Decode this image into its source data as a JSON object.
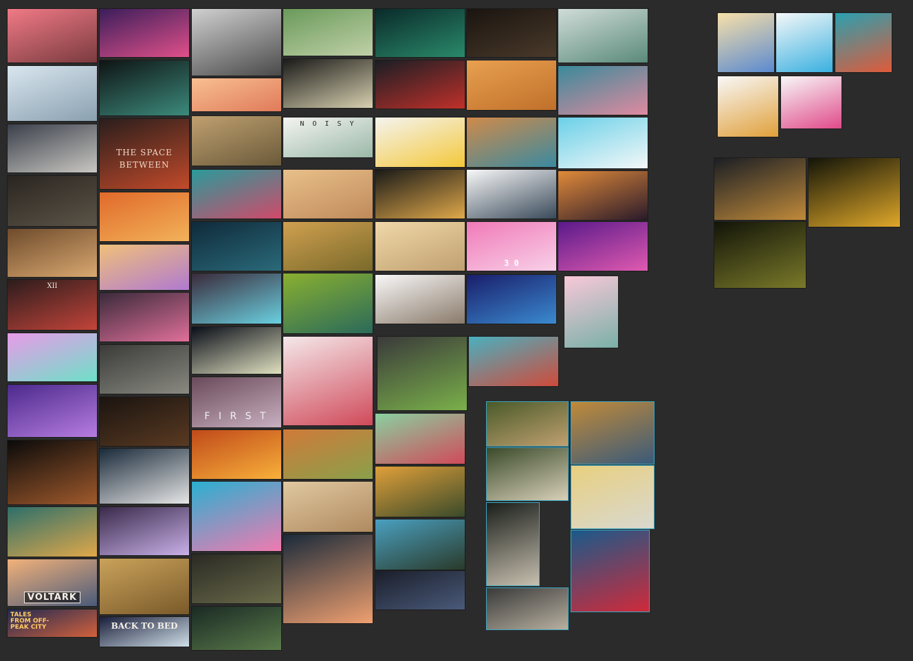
{
  "board": {
    "tiles": [
      {
        "name": "tile-pink-sunset-ruins",
        "c1": "#f07a86",
        "c2": "#7a3b3f"
      },
      {
        "name": "tile-white-iso-room",
        "c1": "#d9e6ef",
        "c2": "#8aa0b0"
      },
      {
        "name": "tile-monochrome-toy-scene",
        "c1": "#3a3f4a",
        "c2": "#c9c7c2"
      },
      {
        "name": "tile-dark-kitchen",
        "c1": "#2a2520",
        "c2": "#5c5448"
      },
      {
        "name": "tile-window-room",
        "c1": "#6e4b2c",
        "c2": "#d9a870"
      },
      {
        "name": "tile-red-moon-bar",
        "c1": "#2b1c1c",
        "c2": "#c3443a",
        "label": "XII"
      },
      {
        "name": "tile-neon-pastel-house",
        "c1": "#e89be8",
        "c2": "#6ee0c8"
      },
      {
        "name": "tile-purple-tree-field",
        "c1": "#4b2a8c",
        "c2": "#b77ce0"
      },
      {
        "name": "tile-glowing-capsule",
        "c1": "#0a0a0a",
        "c2": "#a05a2c"
      },
      {
        "name": "tile-teal-chess-tower",
        "c1": "#2d6f6a",
        "c2": "#e0a84a"
      },
      {
        "name": "tile-voltark-sunset",
        "c1": "#f3b27a",
        "c2": "#4a5a7a",
        "label": "VOLTARK"
      },
      {
        "name": "tile-tales-off-peak-city",
        "c1": "#1f2a52",
        "c2": "#d4613c",
        "label": "TALES FROM OFF-PEAK CITY"
      },
      {
        "name": "tile-purple-pink-forest",
        "c1": "#3b1e5a",
        "c2": "#e0508a"
      },
      {
        "name": "tile-dark-teal-room",
        "c1": "#0f1414",
        "c2": "#3c8a7c"
      },
      {
        "name": "tile-the-space-between",
        "c1": "#2a1e1c",
        "c2": "#c24a2a",
        "label": "THE SPACE BETWEEN"
      },
      {
        "name": "tile-orange-canyon",
        "c1": "#e06a2a",
        "c2": "#f2b25a"
      },
      {
        "name": "tile-pastel-desert-tower",
        "c1": "#f0c07a",
        "c2": "#b07ad0"
      },
      {
        "name": "tile-pink-cubes-night",
        "c1": "#3a2a3a",
        "c2": "#e0709a"
      },
      {
        "name": "tile-foggy-forest",
        "c1": "#3a3a38",
        "c2": "#8a8a82"
      },
      {
        "name": "tile-dark-corridor",
        "c1": "#1a1410",
        "c2": "#5a3a22"
      },
      {
        "name": "tile-paper-cutout-map",
        "c1": "#1a2a3a",
        "c2": "#e6e6e6"
      },
      {
        "name": "tile-purple-stairs",
        "c1": "#3a2a4a",
        "c2": "#c8b0e8"
      },
      {
        "name": "tile-golden-mountain-pilgrim",
        "c1": "#c9a25a",
        "c2": "#7a5a2a"
      },
      {
        "name": "tile-back-to-bed-eye",
        "c1": "#1a1e3a",
        "c2": "#d0e0e8",
        "label": "BACK TO BED"
      },
      {
        "name": "tile-ink-creatures",
        "c1": "#d0d0d0",
        "c2": "#4a4a4a"
      },
      {
        "name": "tile-orange-haze-forest",
        "c1": "#f8c090",
        "c2": "#e07a5a"
      },
      {
        "name": "tile-desert-steampunk-city",
        "c1": "#c0a070",
        "c2": "#6a5a3a"
      },
      {
        "name": "tile-crystal-sea",
        "c1": "#2a9a9a",
        "c2": "#d04a6a"
      },
      {
        "name": "tile-dark-blue-bridge",
        "c1": "#0f2a3a",
        "c2": "#2a6a7a"
      },
      {
        "name": "tile-waterfall-valley",
        "c1": "#3a2a3a",
        "c2": "#6ad0e0"
      },
      {
        "name": "tile-city-lights-night",
        "c1": "#0a0e18",
        "c2": "#e0e0c0"
      },
      {
        "name": "tile-first-title",
        "c1": "#6a4a5a",
        "c2": "#c8b0c0",
        "label": "F I R S T"
      },
      {
        "name": "tile-golden-temple",
        "c1": "#c04a1a",
        "c2": "#f8b03a"
      },
      {
        "name": "tile-pixel-pink-robot",
        "c1": "#2ab0d0",
        "c2": "#f07ab0"
      },
      {
        "name": "tile-jungle-ruins-dark",
        "c1": "#2a2a24",
        "c2": "#6a6a4a"
      },
      {
        "name": "tile-dark-green-underwater",
        "c1": "#1a2a24",
        "c2": "#5a7a4a"
      },
      {
        "name": "tile-green-hill-figure",
        "c1": "#6a9a5a",
        "c2": "#c0d0a8"
      },
      {
        "name": "tile-light-shaft-cave",
        "c1": "#1a1a18",
        "c2": "#d8d0b0"
      },
      {
        "name": "tile-noisy-paper-title",
        "c1": "#f4f4f0",
        "c2": "#9ab8a8",
        "label": "N O I S Y"
      },
      {
        "name": "tile-desert-road",
        "c1": "#e8c08a",
        "c2": "#c08a5a"
      },
      {
        "name": "tile-autumn-field",
        "c1": "#d0a050",
        "c2": "#7a6a2a"
      },
      {
        "name": "tile-green-swamp-map",
        "c1": "#8ab030",
        "c2": "#2a6a5a"
      },
      {
        "name": "tile-pink-street",
        "c1": "#f4e8ea",
        "c2": "#d04a5a"
      },
      {
        "name": "tile-autumn-village",
        "c1": "#d07a3a",
        "c2": "#8aa04a"
      },
      {
        "name": "tile-desert-dune-sphere",
        "c1": "#e0c8a0",
        "c2": "#b08a60"
      },
      {
        "name": "tile-power-lines-clouds",
        "c1": "#1a2a3a",
        "c2": "#f0a070"
      },
      {
        "name": "tile-dark-teal-waves",
        "c1": "#0a2a2a",
        "c2": "#2a8a6a"
      },
      {
        "name": "tile-red-roots-room",
        "c1": "#1a1e24",
        "c2": "#c0302a"
      },
      {
        "name": "tile-yellow-creature",
        "c1": "#f4f4f0",
        "c2": "#f4c83a"
      },
      {
        "name": "tile-impossible-architecture",
        "c1": "#1a1a18",
        "c2": "#e0a84a"
      },
      {
        "name": "tile-desert-figures",
        "c1": "#f0d8a8",
        "c2": "#c0a070"
      },
      {
        "name": "tile-rocky-island-white",
        "c1": "#f8f8f8",
        "c2": "#8a7a6a"
      },
      {
        "name": "tile-iso-grass-island",
        "c1": "#3a3a3a",
        "c2": "#7ab04a"
      },
      {
        "name": "tile-garden-pond",
        "c1": "#8ad0a0",
        "c2": "#d04a5a"
      },
      {
        "name": "tile-orange-forest-sunset",
        "c1": "#e0a03a",
        "c2": "#3a4a2a"
      },
      {
        "name": "tile-watchtower-forest",
        "c1": "#4aa0c0",
        "c2": "#2a3a2a"
      },
      {
        "name": "tile-dark-sign-night",
        "c1": "#1a1e2a",
        "c2": "#4a5a7a"
      },
      {
        "name": "tile-dark-basement",
        "c1": "#1a1410",
        "c2": "#4a3a2a"
      },
      {
        "name": "tile-red-cloak-desert",
        "c1": "#e8a050",
        "c2": "#c0702a"
      },
      {
        "name": "tile-colorful-town",
        "c1": "#d08a4a",
        "c2": "#3a8aa0"
      },
      {
        "name": "tile-white-text-dome",
        "c1": "#f8f8f8",
        "c2": "#3a4a5a"
      },
      {
        "name": "tile-pink-pong",
        "c1": "#f07ab8",
        "c2": "#f8d0e8",
        "label": "3     0"
      },
      {
        "name": "tile-blue-mountain-night",
        "c1": "#1a1e6a",
        "c2": "#3a8ad0"
      },
      {
        "name": "tile-colorful-orchard",
        "c1": "#4ab0c0",
        "c2": "#d04a3a"
      },
      {
        "name": "tile-snowy-camp",
        "c1": "#d0dcd8",
        "c2": "#5a8a7a"
      },
      {
        "name": "tile-pink-house",
        "c1": "#3a8a9a",
        "c2": "#e08aa0"
      },
      {
        "name": "tile-whale-sky",
        "c1": "#6ad0e8",
        "c2": "#f4f8f8"
      },
      {
        "name": "tile-orange-cliff",
        "c1": "#e08a3a",
        "c2": "#2a1a2a"
      },
      {
        "name": "tile-magenta-tree-deer",
        "c1": "#5a1a8a",
        "c2": "#e05ab0"
      },
      {
        "name": "tile-pink-floating-islands",
        "c1": "#f8c8d8",
        "c2": "#7ab0a8"
      },
      {
        "name": "tile-office-icons-beige",
        "c1": "#f8e0a8",
        "c2": "#5a8ad0"
      },
      {
        "name": "tile-office-icons-light",
        "c1": "#f4f8f8",
        "c2": "#3ab0e0"
      },
      {
        "name": "tile-office-icons-teal",
        "c1": "#2aa0b0",
        "c2": "#e05a3a"
      },
      {
        "name": "tile-office-icons-white",
        "c1": "#f8f8f8",
        "c2": "#e0a03a"
      },
      {
        "name": "tile-stationery-icons",
        "c1": "#f8f8f8",
        "c2": "#e04a8a"
      },
      {
        "name": "tile-flora-sprites-dark",
        "c1": "#1a1e24",
        "c2": "#c08a3a"
      },
      {
        "name": "tile-flora-sprites-yellow",
        "c1": "#121408",
        "c2": "#e0a82a"
      },
      {
        "name": "tile-flora-sprites-olive",
        "c1": "#121408",
        "c2": "#7a7a2a"
      },
      {
        "name": "tile-garden-earthly-delights",
        "c1": "#4a5a2a",
        "c2": "#c0a070"
      },
      {
        "name": "tile-triptych-interior",
        "c1": "#3a4a2a",
        "c2": "#d8d0b8"
      },
      {
        "name": "tile-surreal-rock-figure",
        "c1": "#1a1e1a",
        "c2": "#c8c0b0"
      },
      {
        "name": "tile-surreal-landscape",
        "c1": "#3a3a3a",
        "c2": "#b8b0a0"
      },
      {
        "name": "tile-persistence-of-memory",
        "c1": "#c08a3a",
        "c2": "#3a5a7a"
      },
      {
        "name": "tile-cloud-head",
        "c1": "#e8d080",
        "c2": "#d8d8d0"
      },
      {
        "name": "tile-red-blue-cubes",
        "c1": "#1a5a8a",
        "c2": "#d02a3a"
      }
    ]
  }
}
